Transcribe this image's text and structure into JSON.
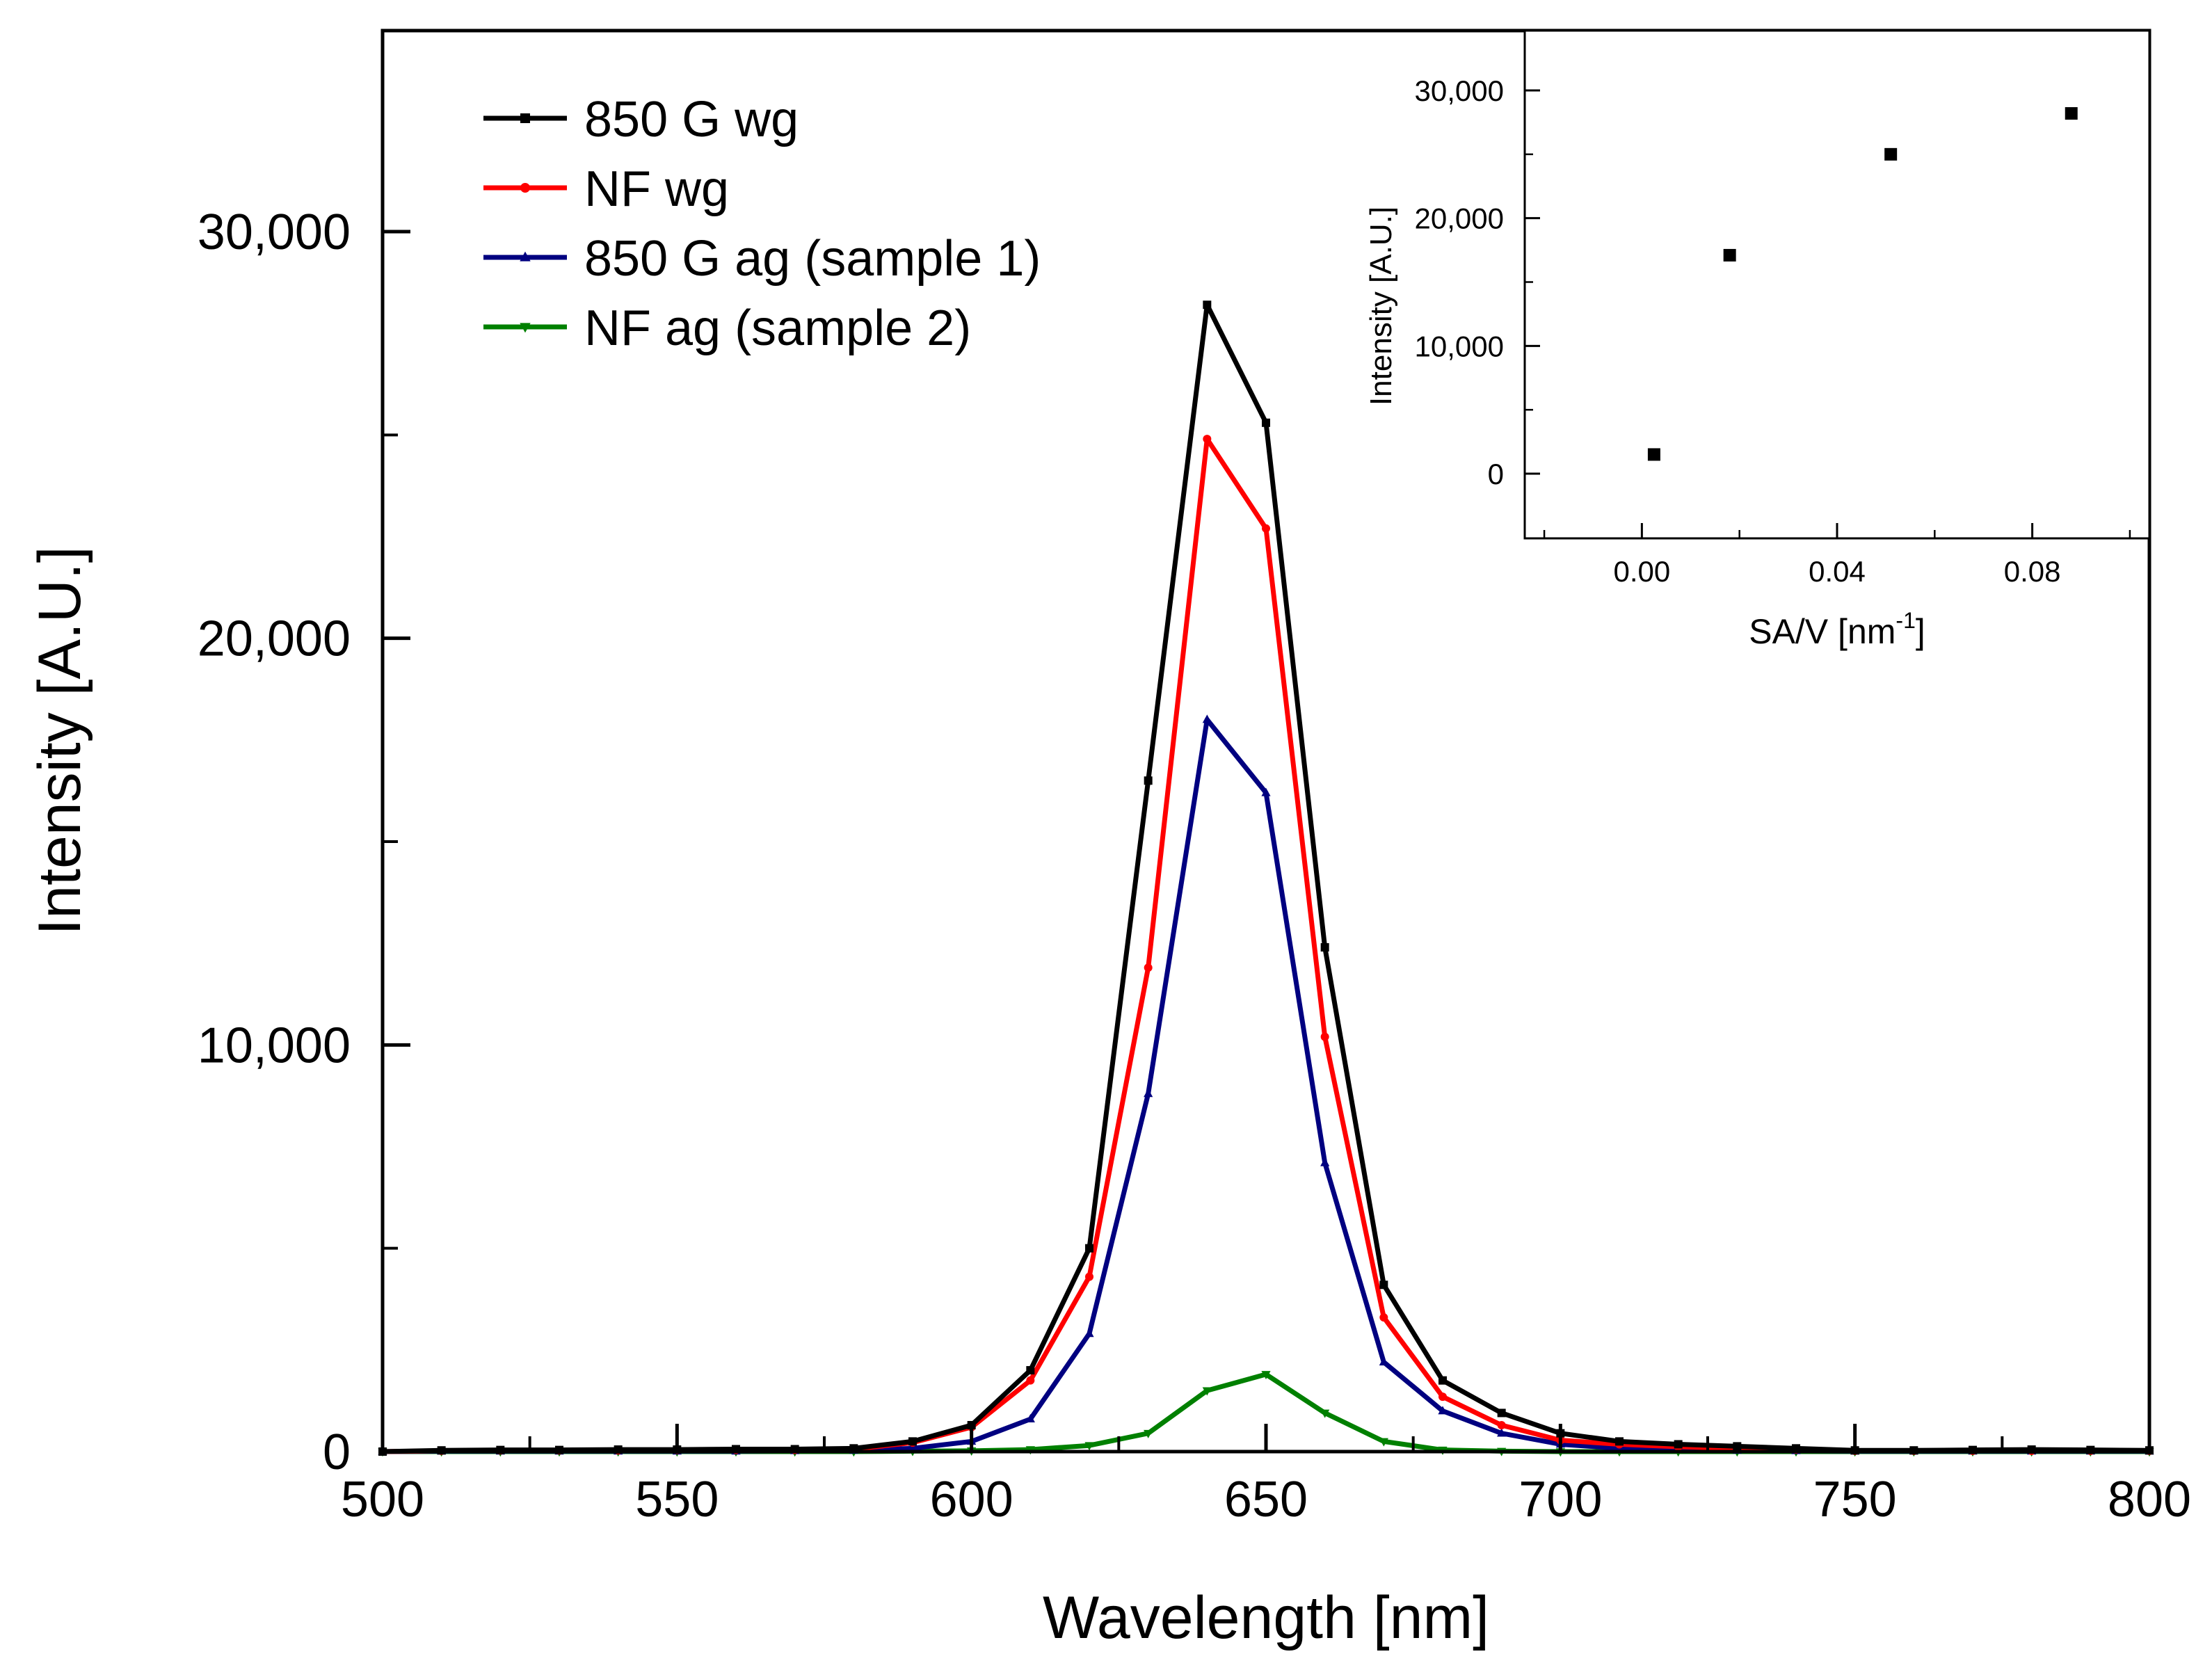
{
  "chart_data": [
    {
      "type": "line",
      "xlabel": "Wavelength [nm]",
      "ylabel": "Intensity [A.U.]",
      "xlim": [
        500,
        800
      ],
      "ylim": [
        0,
        35000
      ],
      "x_ticks": [
        500,
        550,
        600,
        650,
        700,
        750,
        800
      ],
      "x_tick_labels": [
        "500",
        "550",
        "600",
        "650",
        "700",
        "750",
        "800"
      ],
      "y_ticks": [
        0,
        10000,
        20000,
        30000
      ],
      "y_tick_labels": [
        "0",
        "10,000",
        "20,000",
        "30,000"
      ],
      "legend_position": "top-left",
      "x": [
        500,
        510,
        520,
        530,
        540,
        550,
        560,
        570,
        580,
        590,
        600,
        610,
        620,
        630,
        640,
        650,
        660,
        670,
        680,
        690,
        700,
        710,
        720,
        730,
        740,
        750,
        760,
        770,
        780,
        790,
        800
      ],
      "series": [
        {
          "name": "850 G wg",
          "color": "#000000",
          "marker": "square",
          "values": [
            0,
            30,
            40,
            40,
            50,
            50,
            60,
            60,
            80,
            250,
            650,
            2000,
            5000,
            16500,
            28200,
            25300,
            12400,
            4100,
            1750,
            950,
            450,
            250,
            180,
            130,
            80,
            30,
            30,
            40,
            50,
            40,
            30
          ]
        },
        {
          "name": "NF wg",
          "color": "#ff0000",
          "marker": "circle",
          "values": [
            0,
            20,
            30,
            30,
            30,
            40,
            40,
            40,
            60,
            220,
            600,
            1750,
            4300,
            11900,
            24900,
            22700,
            10200,
            3300,
            1350,
            650,
            280,
            180,
            120,
            80,
            50,
            20,
            20,
            20,
            20,
            20,
            20
          ]
        },
        {
          "name": "850 G ag (sample 1)",
          "color": "#000080",
          "marker": "triangle-up",
          "values": [
            0,
            10,
            10,
            10,
            10,
            10,
            10,
            20,
            30,
            80,
            250,
            800,
            2900,
            8800,
            18000,
            16200,
            7100,
            2200,
            1000,
            450,
            180,
            80,
            50,
            30,
            20,
            10,
            10,
            10,
            10,
            10,
            10
          ]
        },
        {
          "name": "NF ag (sample 2)",
          "color": "#008000",
          "marker": "triangle-down",
          "values": [
            0,
            0,
            0,
            0,
            0,
            0,
            0,
            0,
            0,
            10,
            20,
            50,
            150,
            450,
            1500,
            1900,
            950,
            250,
            40,
            10,
            0,
            0,
            0,
            0,
            0,
            0,
            0,
            0,
            0,
            0,
            0
          ]
        }
      ]
    },
    {
      "type": "scatter",
      "role": "inset",
      "xlabel": "SA/V [nm",
      "xlabel_superscript": "-1",
      "xlabel_suffix": "]",
      "ylabel": "Intensity [A.U.]",
      "xlim": [
        -0.024,
        0.104
      ],
      "ylim": [
        -5000,
        35000
      ],
      "x_ticks": [
        0.0,
        0.04,
        0.08
      ],
      "x_tick_labels": [
        "0.00",
        "0.04",
        "0.08"
      ],
      "y_ticks": [
        0,
        10000,
        20000,
        30000
      ],
      "y_tick_labels": [
        "0",
        "10,000",
        "20,000",
        "30,000"
      ],
      "x": [
        0.0025,
        0.018,
        0.051,
        0.088
      ],
      "y": [
        1500,
        17100,
        25000,
        28200
      ],
      "marker": "square",
      "color": "#000000"
    }
  ]
}
